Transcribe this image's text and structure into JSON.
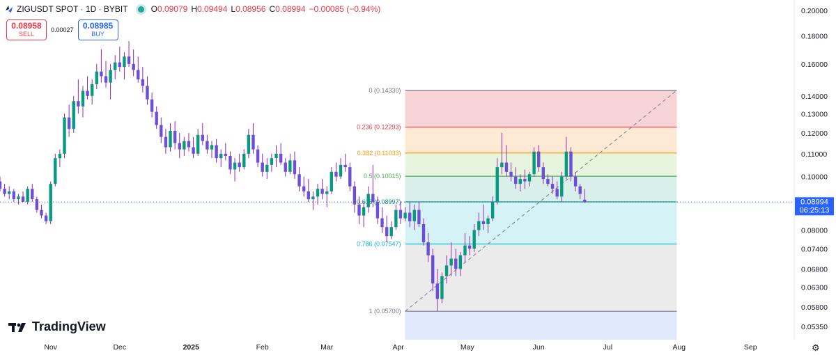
{
  "header": {
    "symbol": "ZIGUSDT SPOT · 1D · BYBIT",
    "o_label": "O",
    "o": "0.09079",
    "h_label": "H",
    "h": "0.09494",
    "l_label": "L",
    "l": "0.08956",
    "c_label": "C",
    "c": "0.08994",
    "change": "−0.00085 (−0.94%)"
  },
  "trade": {
    "sell_price": "0.08958",
    "sell_label": "SELL",
    "spread": "0.00027",
    "buy_price": "0.08985",
    "buy_label": "BUY"
  },
  "price_axis": {
    "ticks": [
      "0.20000",
      "0.18000",
      "0.16000",
      "0.14000",
      "0.13000",
      "0.12000",
      "0.11000",
      "0.10000",
      "0.08000",
      "0.07400",
      "0.06800",
      "0.06300",
      "0.05800",
      "0.05350"
    ],
    "current_price": "0.08994",
    "countdown": "06:25:13"
  },
  "time_axis": {
    "ticks": [
      "Nov",
      "Dec",
      "2025",
      "Feb",
      "Mar",
      "Apr",
      "May",
      "Jun",
      "Jul",
      "Aug",
      "Sep"
    ]
  },
  "fibonacci": [
    {
      "label": "0 (0.14330)",
      "value": 0.1433,
      "color": "#787b86",
      "fill": "#f7c5c9"
    },
    {
      "label": "0.236 (0.12293)",
      "value": 0.12293,
      "color": "#f23645",
      "fill": "#fde3c6"
    },
    {
      "label": "0.382 (0.11033)",
      "value": 0.11033,
      "color": "#ff9800",
      "fill": "#dff0d3"
    },
    {
      "label": "0.5 (0.10015)",
      "value": 0.10015,
      "color": "#4caf50",
      "fill": "#cce9e2"
    },
    {
      "label": "0.618 (0.08997)",
      "value": 0.08997,
      "color": "#089981",
      "fill": "#c7edf3"
    },
    {
      "label": "0.786 (0.07547)",
      "value": 0.07547,
      "color": "#00bcd4",
      "fill": "#e4e4e4"
    },
    {
      "label": "1 (0.05700)",
      "value": 0.057,
      "color": "#787b86",
      "fill": "#d6e2fd"
    }
  ],
  "brand": {
    "name": "TradingView"
  },
  "colors": {
    "up": "#089981",
    "down": "#6b4fd6",
    "wick": "#9c27b0",
    "accent": "#2962ff",
    "red": "#f23645"
  },
  "chart_data": {
    "type": "candlestick",
    "x_unit": "date",
    "ylim": [
      0.052,
      0.205
    ],
    "y_scale": "log",
    "x_range": [
      "2024-10-10",
      "2025-09-20"
    ],
    "fib_retracement": {
      "high": 0.1433,
      "low": 0.057,
      "start_date": "2025-04-04",
      "end_date": "2025-07-31"
    },
    "ohlc": [
      [
        "2024-10-10",
        0.098,
        0.1,
        0.094,
        0.095
      ],
      [
        "2024-10-12",
        0.095,
        0.097,
        0.092,
        0.093
      ],
      [
        "2024-10-14",
        0.093,
        0.096,
        0.091,
        0.094
      ],
      [
        "2024-10-16",
        0.094,
        0.095,
        0.09,
        0.091
      ],
      [
        "2024-10-18",
        0.091,
        0.093,
        0.089,
        0.092
      ],
      [
        "2024-10-20",
        0.092,
        0.094,
        0.09,
        0.09
      ],
      [
        "2024-10-22",
        0.09,
        0.096,
        0.089,
        0.095
      ],
      [
        "2024-10-24",
        0.095,
        0.097,
        0.09,
        0.091
      ],
      [
        "2024-10-26",
        0.091,
        0.092,
        0.086,
        0.087
      ],
      [
        "2024-10-28",
        0.087,
        0.089,
        0.084,
        0.085
      ],
      [
        "2024-10-30",
        0.085,
        0.086,
        0.082,
        0.083
      ],
      [
        "2024-11-01",
        0.083,
        0.098,
        0.082,
        0.097
      ],
      [
        "2024-11-03",
        0.097,
        0.11,
        0.096,
        0.108
      ],
      [
        "2024-11-05",
        0.108,
        0.112,
        0.104,
        0.11
      ],
      [
        "2024-11-07",
        0.11,
        0.13,
        0.108,
        0.128
      ],
      [
        "2024-11-09",
        0.128,
        0.135,
        0.118,
        0.122
      ],
      [
        "2024-11-11",
        0.122,
        0.14,
        0.12,
        0.137
      ],
      [
        "2024-11-13",
        0.137,
        0.15,
        0.13,
        0.134
      ],
      [
        "2024-11-15",
        0.134,
        0.146,
        0.128,
        0.143
      ],
      [
        "2024-11-17",
        0.143,
        0.152,
        0.138,
        0.14
      ],
      [
        "2024-11-19",
        0.14,
        0.15,
        0.135,
        0.147
      ],
      [
        "2024-11-21",
        0.147,
        0.16,
        0.144,
        0.155
      ],
      [
        "2024-11-23",
        0.155,
        0.17,
        0.148,
        0.152
      ],
      [
        "2024-11-25",
        0.152,
        0.162,
        0.145,
        0.148
      ],
      [
        "2024-11-27",
        0.148,
        0.16,
        0.138,
        0.156
      ],
      [
        "2024-11-29",
        0.156,
        0.166,
        0.15,
        0.161
      ],
      [
        "2024-12-01",
        0.161,
        0.172,
        0.155,
        0.158
      ],
      [
        "2024-12-03",
        0.158,
        0.168,
        0.15,
        0.165
      ],
      [
        "2024-12-05",
        0.165,
        0.176,
        0.158,
        0.16
      ],
      [
        "2024-12-07",
        0.16,
        0.17,
        0.152,
        0.156
      ],
      [
        "2024-12-09",
        0.156,
        0.165,
        0.148,
        0.15
      ],
      [
        "2024-12-11",
        0.15,
        0.158,
        0.142,
        0.146
      ],
      [
        "2024-12-13",
        0.146,
        0.152,
        0.135,
        0.138
      ],
      [
        "2024-12-15",
        0.138,
        0.142,
        0.128,
        0.131
      ],
      [
        "2024-12-17",
        0.131,
        0.134,
        0.122,
        0.124
      ],
      [
        "2024-12-19",
        0.124,
        0.128,
        0.115,
        0.118
      ],
      [
        "2024-12-21",
        0.118,
        0.122,
        0.11,
        0.113
      ],
      [
        "2024-12-23",
        0.113,
        0.125,
        0.111,
        0.121
      ],
      [
        "2024-12-25",
        0.121,
        0.126,
        0.112,
        0.115
      ],
      [
        "2024-12-27",
        0.115,
        0.12,
        0.108,
        0.112
      ],
      [
        "2024-12-29",
        0.112,
        0.118,
        0.109,
        0.116
      ],
      [
        "2024-12-31",
        0.116,
        0.12,
        0.111,
        0.113
      ],
      [
        "2025-01-02",
        0.113,
        0.118,
        0.108,
        0.11
      ],
      [
        "2025-01-04",
        0.11,
        0.122,
        0.109,
        0.119
      ],
      [
        "2025-01-06",
        0.119,
        0.125,
        0.114,
        0.116
      ],
      [
        "2025-01-08",
        0.116,
        0.119,
        0.11,
        0.112
      ],
      [
        "2025-01-10",
        0.112,
        0.116,
        0.108,
        0.114
      ],
      [
        "2025-01-12",
        0.114,
        0.117,
        0.106,
        0.108
      ],
      [
        "2025-01-14",
        0.108,
        0.112,
        0.104,
        0.11
      ],
      [
        "2025-01-16",
        0.11,
        0.115,
        0.107,
        0.109
      ],
      [
        "2025-01-18",
        0.109,
        0.111,
        0.101,
        0.103
      ],
      [
        "2025-01-20",
        0.103,
        0.108,
        0.098,
        0.106
      ],
      [
        "2025-01-22",
        0.106,
        0.11,
        0.102,
        0.104
      ],
      [
        "2025-01-24",
        0.104,
        0.112,
        0.103,
        0.11
      ],
      [
        "2025-01-26",
        0.11,
        0.122,
        0.108,
        0.119
      ],
      [
        "2025-01-28",
        0.119,
        0.125,
        0.11,
        0.112
      ],
      [
        "2025-01-30",
        0.112,
        0.114,
        0.104,
        0.106
      ],
      [
        "2025-02-01",
        0.106,
        0.11,
        0.1,
        0.102
      ],
      [
        "2025-02-03",
        0.102,
        0.108,
        0.099,
        0.105
      ],
      [
        "2025-02-05",
        0.105,
        0.11,
        0.102,
        0.108
      ],
      [
        "2025-02-07",
        0.108,
        0.114,
        0.104,
        0.11
      ],
      [
        "2025-02-09",
        0.11,
        0.115,
        0.105,
        0.106
      ],
      [
        "2025-02-11",
        0.106,
        0.108,
        0.1,
        0.102
      ],
      [
        "2025-02-13",
        0.102,
        0.11,
        0.101,
        0.107
      ],
      [
        "2025-02-15",
        0.107,
        0.111,
        0.099,
        0.101
      ],
      [
        "2025-02-17",
        0.101,
        0.104,
        0.094,
        0.096
      ],
      [
        "2025-02-19",
        0.096,
        0.1,
        0.092,
        0.094
      ],
      [
        "2025-02-21",
        0.094,
        0.099,
        0.09,
        0.091
      ],
      [
        "2025-02-23",
        0.091,
        0.094,
        0.087,
        0.092
      ],
      [
        "2025-02-25",
        0.092,
        0.097,
        0.089,
        0.095
      ],
      [
        "2025-02-27",
        0.095,
        0.099,
        0.091,
        0.093
      ],
      [
        "2025-03-01",
        0.093,
        0.096,
        0.088,
        0.094
      ],
      [
        "2025-03-03",
        0.094,
        0.104,
        0.093,
        0.102
      ],
      [
        "2025-03-05",
        0.102,
        0.106,
        0.098,
        0.1
      ],
      [
        "2025-03-07",
        0.1,
        0.108,
        0.099,
        0.105
      ],
      [
        "2025-03-09",
        0.105,
        0.11,
        0.102,
        0.104
      ],
      [
        "2025-03-11",
        0.104,
        0.106,
        0.094,
        0.096
      ],
      [
        "2025-03-13",
        0.096,
        0.098,
        0.086,
        0.089
      ],
      [
        "2025-03-15",
        0.089,
        0.092,
        0.082,
        0.085
      ],
      [
        "2025-03-17",
        0.085,
        0.09,
        0.081,
        0.088
      ],
      [
        "2025-03-19",
        0.088,
        0.096,
        0.086,
        0.093
      ],
      [
        "2025-03-21",
        0.093,
        0.105,
        0.088,
        0.09
      ],
      [
        "2025-03-23",
        0.09,
        0.092,
        0.082,
        0.084
      ],
      [
        "2025-03-25",
        0.084,
        0.088,
        0.079,
        0.081
      ],
      [
        "2025-03-27",
        0.081,
        0.085,
        0.076,
        0.078
      ],
      [
        "2025-03-29",
        0.078,
        0.083,
        0.077,
        0.081
      ],
      [
        "2025-03-31",
        0.081,
        0.089,
        0.08,
        0.087
      ],
      [
        "2025-04-02",
        0.087,
        0.09,
        0.082,
        0.084
      ],
      [
        "2025-04-04",
        0.084,
        0.088,
        0.083,
        0.086
      ],
      [
        "2025-04-06",
        0.086,
        0.09,
        0.081,
        0.083
      ],
      [
        "2025-04-08",
        0.083,
        0.089,
        0.08,
        0.087
      ],
      [
        "2025-04-10",
        0.087,
        0.09,
        0.081,
        0.082
      ],
      [
        "2025-04-12",
        0.082,
        0.084,
        0.075,
        0.076
      ],
      [
        "2025-04-14",
        0.076,
        0.079,
        0.07,
        0.072
      ],
      [
        "2025-04-16",
        0.072,
        0.074,
        0.062,
        0.064
      ],
      [
        "2025-04-18",
        0.064,
        0.068,
        0.057,
        0.06
      ],
      [
        "2025-04-20",
        0.06,
        0.067,
        0.059,
        0.066
      ],
      [
        "2025-04-22",
        0.066,
        0.072,
        0.064,
        0.069
      ],
      [
        "2025-04-24",
        0.069,
        0.076,
        0.066,
        0.071
      ],
      [
        "2025-04-26",
        0.071,
        0.074,
        0.066,
        0.068
      ],
      [
        "2025-04-28",
        0.068,
        0.073,
        0.066,
        0.072
      ],
      [
        "2025-04-30",
        0.072,
        0.079,
        0.07,
        0.075
      ],
      [
        "2025-05-02",
        0.075,
        0.078,
        0.072,
        0.074
      ],
      [
        "2025-05-04",
        0.074,
        0.082,
        0.073,
        0.08
      ],
      [
        "2025-05-06",
        0.08,
        0.086,
        0.078,
        0.083
      ],
      [
        "2025-05-08",
        0.083,
        0.089,
        0.08,
        0.082
      ],
      [
        "2025-05-10",
        0.082,
        0.085,
        0.079,
        0.084
      ],
      [
        "2025-05-12",
        0.084,
        0.092,
        0.083,
        0.09
      ],
      [
        "2025-05-14",
        0.09,
        0.108,
        0.089,
        0.104
      ],
      [
        "2025-05-16",
        0.104,
        0.12,
        0.101,
        0.106
      ],
      [
        "2025-05-18",
        0.106,
        0.114,
        0.1,
        0.102
      ],
      [
        "2025-05-20",
        0.102,
        0.106,
        0.098,
        0.1
      ],
      [
        "2025-05-22",
        0.1,
        0.104,
        0.095,
        0.097
      ],
      [
        "2025-05-24",
        0.097,
        0.101,
        0.094,
        0.099
      ],
      [
        "2025-05-26",
        0.099,
        0.103,
        0.095,
        0.098
      ],
      [
        "2025-05-28",
        0.098,
        0.102,
        0.096,
        0.101
      ],
      [
        "2025-05-30",
        0.101,
        0.113,
        0.1,
        0.111
      ],
      [
        "2025-06-01",
        0.111,
        0.114,
        0.102,
        0.104
      ],
      [
        "2025-06-03",
        0.104,
        0.106,
        0.097,
        0.099
      ],
      [
        "2025-06-05",
        0.099,
        0.101,
        0.096,
        0.097
      ],
      [
        "2025-06-07",
        0.097,
        0.1,
        0.093,
        0.095
      ],
      [
        "2025-06-09",
        0.095,
        0.098,
        0.091,
        0.092
      ],
      [
        "2025-06-11",
        0.092,
        0.102,
        0.09,
        0.1
      ],
      [
        "2025-06-13",
        0.1,
        0.118,
        0.099,
        0.111
      ],
      [
        "2025-06-15",
        0.111,
        0.113,
        0.098,
        0.1
      ],
      [
        "2025-06-17",
        0.1,
        0.102,
        0.094,
        0.096
      ],
      [
        "2025-06-19",
        0.096,
        0.097,
        0.091,
        0.093
      ],
      [
        "2025-06-21",
        0.0908,
        0.0949,
        0.0896,
        0.0899
      ]
    ]
  }
}
